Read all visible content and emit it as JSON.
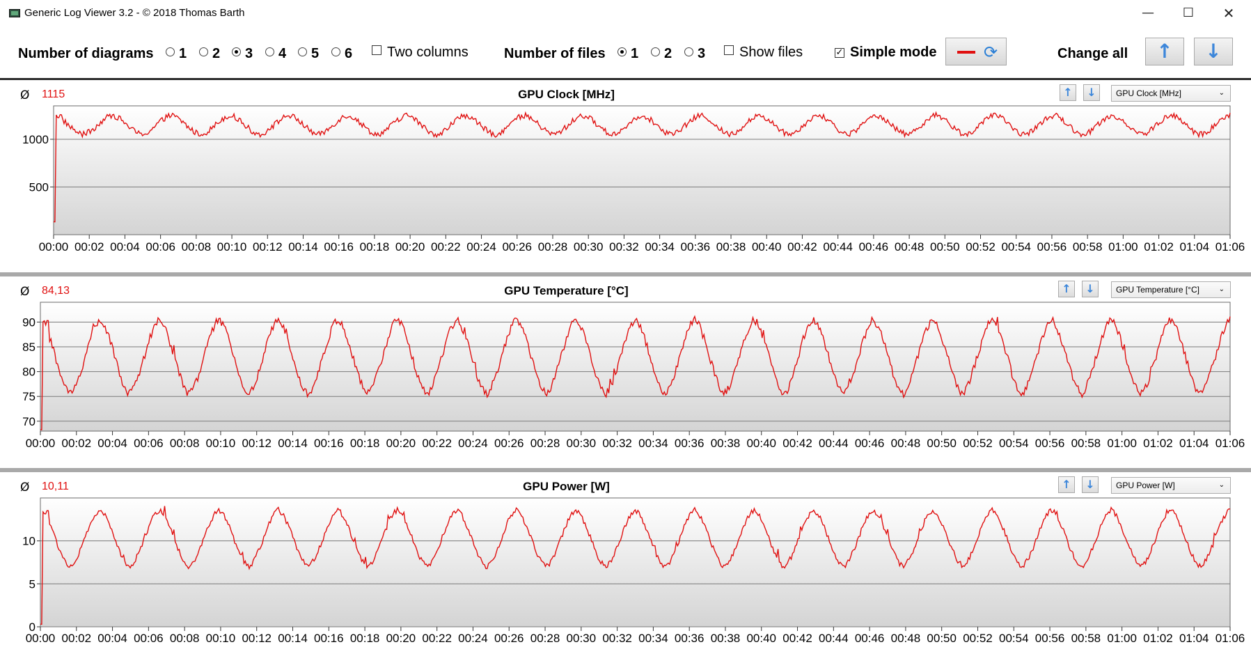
{
  "window": {
    "title": "Generic Log Viewer 3.2 - © 2018 Thomas Barth",
    "min_glyph": "—",
    "max_glyph": "☐",
    "close_glyph": "✕"
  },
  "toolbar": {
    "diagrams_label": "Number of diagrams",
    "diagram_options": [
      "1",
      "2",
      "3",
      "4",
      "5",
      "6"
    ],
    "diagrams_selected": "3",
    "two_columns_label": "Two columns",
    "two_columns_checked": false,
    "files_label": "Number of files",
    "file_options": [
      "1",
      "2",
      "3"
    ],
    "files_selected": "1",
    "show_files_label": "Show files",
    "show_files_checked": false,
    "simple_mode_label": "Simple mode",
    "simple_mode_checked": true,
    "change_all_label": "Change all",
    "line_color": "#e01010"
  },
  "time_ticks": [
    "00:00",
    "00:02",
    "00:04",
    "00:06",
    "00:08",
    "00:10",
    "00:12",
    "00:14",
    "00:16",
    "00:18",
    "00:20",
    "00:22",
    "00:24",
    "00:26",
    "00:28",
    "00:30",
    "00:32",
    "00:34",
    "00:36",
    "00:38",
    "00:40",
    "00:42",
    "00:44",
    "00:46",
    "00:48",
    "00:50",
    "00:52",
    "00:54",
    "00:56",
    "00:58",
    "01:00",
    "01:02",
    "01:04",
    "01:06"
  ],
  "panels": [
    {
      "title": "GPU Clock [MHz]",
      "average_symbol": "Ø",
      "average": "1115",
      "selector": "GPU Clock [MHz]",
      "chart_data": {
        "type": "line",
        "title": "GPU Clock [MHz]",
        "x_unit": "seconds",
        "xlim": [
          0,
          66
        ],
        "ylim": [
          0,
          1350
        ],
        "yticks": [
          1000,
          500
        ],
        "ytick_labels": [
          "1000",
          "500"
        ],
        "grid": true,
        "baseline": 135,
        "base": 1150,
        "amp": 100,
        "period": 3.3,
        "noise": 60,
        "peak_lift": 0,
        "values_summary": "oscillates between ~950 and ~1290 MHz after start at ~135 MHz"
      }
    },
    {
      "title": "GPU Temperature [°C]",
      "average_symbol": "Ø",
      "average": "84,13",
      "selector": "GPU Temperature [°C]",
      "chart_data": {
        "type": "line",
        "title": "GPU Temperature [°C]",
        "x_unit": "seconds",
        "xlim": [
          0,
          66
        ],
        "ylim": [
          68,
          94
        ],
        "yticks": [
          90,
          85,
          80,
          75,
          70
        ],
        "ytick_labels": [
          "90",
          "85",
          "80",
          "75",
          "70"
        ],
        "grid": true,
        "baseline": 68.2,
        "base": 83,
        "amp": 7.5,
        "period": 3.3,
        "noise": 1.6,
        "peak_lift": 1.5,
        "values_summary": "oscillates between ~74 and ~92 °C after start at ~68 °C"
      }
    },
    {
      "title": "GPU Power [W]",
      "average_symbol": "Ø",
      "average": "10,11",
      "selector": "GPU Power [W]",
      "chart_data": {
        "type": "line",
        "title": "GPU Power [W]",
        "x_unit": "seconds",
        "xlim": [
          0,
          66
        ],
        "ylim": [
          0,
          15
        ],
        "yticks": [
          10,
          5,
          0
        ],
        "ytick_labels": [
          "10",
          "5",
          "0"
        ],
        "grid": true,
        "baseline": 0.3,
        "base": 10.3,
        "amp": 3.3,
        "period": 3.3,
        "noise": 0.6,
        "peak_lift": 1.0,
        "values_summary": "oscillates between ~7 and ~14 W after start at ~0.3 W"
      }
    }
  ]
}
